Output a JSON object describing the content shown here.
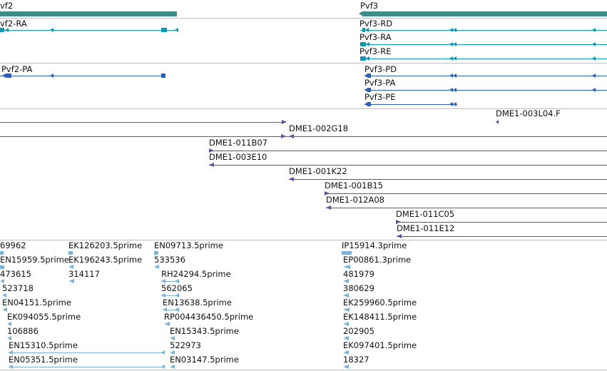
{
  "genes": {
    "pvf2_label": "vf2",
    "pvf3_label": "Pvf3"
  },
  "transcripts_teal": [
    {
      "label": "vf2-RA"
    },
    {
      "label": "Pvf3-RD"
    },
    {
      "label": "Pvf3-RA"
    },
    {
      "label": "Pvf3-RE"
    }
  ],
  "transcripts_blue": [
    {
      "label": "Pvf2-PA"
    },
    {
      "label": "Pvf3-PD"
    },
    {
      "label": "Pvf3-PA"
    },
    {
      "label": "Pvf3-PE"
    }
  ],
  "clones": [
    {
      "label": "DME1-003L04.F"
    },
    {
      "label": "DME1-002G18"
    },
    {
      "label": "DME1-011B07"
    },
    {
      "label": "DME1-003E10"
    },
    {
      "label": "DME1-001K22"
    },
    {
      "label": "DME1-001B15"
    },
    {
      "label": "DME1-012A08"
    },
    {
      "label": "DME1-011C05"
    },
    {
      "label": "DME1-011E12"
    }
  ],
  "ests": [
    {
      "label": "69962"
    },
    {
      "label": "EK126203.5prime"
    },
    {
      "label": "EN09713.5prime"
    },
    {
      "label": "IP15914.3prime"
    },
    {
      "label": "EN15959.5prime"
    },
    {
      "label": "EK196243.5prime"
    },
    {
      "label": "533536"
    },
    {
      "label": "EP00861.3prime"
    },
    {
      "label": "473615"
    },
    {
      "label": "314117"
    },
    {
      "label": "RH24294.5prime"
    },
    {
      "label": "481979"
    },
    {
      "label": "523718"
    },
    {
      "label": "562065"
    },
    {
      "label": "380629"
    },
    {
      "label": "EN04151.5prime"
    },
    {
      "label": "EN13638.5prime"
    },
    {
      "label": "EK259960.5prime"
    },
    {
      "label": "EK094055.5prime"
    },
    {
      "label": "RP004436450.5prime"
    },
    {
      "label": "EK148411.5prime"
    },
    {
      "label": "106886"
    },
    {
      "label": "EN15343.5prime"
    },
    {
      "label": "202905"
    },
    {
      "label": "EN15310.5prime"
    },
    {
      "label": "522973"
    },
    {
      "label": "EK097401.5prime"
    },
    {
      "label": "EN05351.5prime"
    },
    {
      "label": "EN03147.5prime"
    },
    {
      "label": "18327"
    }
  ],
  "colors": {
    "gene": "#3d8c8c",
    "transcript_teal": "#0c97b6",
    "transcript_blue": "#2c5fbd",
    "clone": "#6a4ba4",
    "est": "#7cb3d8",
    "separator": "#bdbdbd"
  }
}
